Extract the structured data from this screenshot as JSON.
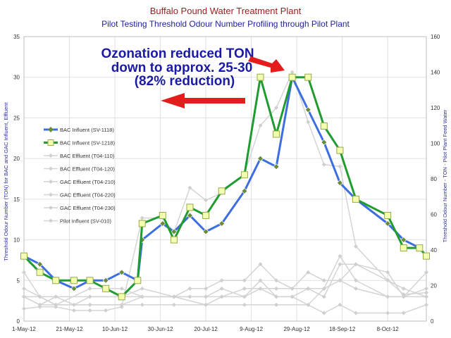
{
  "chart_data": {
    "type": "line",
    "title": "Buffalo Pound Water Treatment Plant",
    "subtitle": "Pilot Testing Threshold Odour Number Profiling through Pilot Plant",
    "ylabel": "Threshold Odour Number (TON) for BAC and GAC Influent, Effluent",
    "y2label": "Threshold Odour Number - TON - Pilot Plant Feed Water",
    "ylim": [
      0,
      35
    ],
    "y2lim": [
      0,
      160
    ],
    "y_ticks": [
      "0",
      "5",
      "10",
      "15",
      "20",
      "25",
      "30",
      "35"
    ],
    "y2_ticks": [
      "0",
      "20",
      "40",
      "60",
      "80",
      "100",
      "120",
      "140",
      "160"
    ],
    "x_ticks": [
      "1-May-12",
      "21-May-12",
      "10-Jun-12",
      "30-Jun-12",
      "20-Jul-12",
      "9-Aug-12",
      "29-Aug-12",
      "18-Sep-12",
      "8-Oct-12"
    ],
    "x_start": "2012-05-01",
    "x_end": "2012-10-25",
    "grid": true,
    "legend_position": "left",
    "annotation": {
      "lines": [
        "Ozonation reduced TON",
        "down to approx. 25-30",
        "(82% reduction)"
      ],
      "color": "#1a1aa6",
      "arrow_color": "#e41c1c"
    },
    "colors": {
      "title": "#9b1c1c",
      "subtitle": "#1f1f9e",
      "axis_label": "#2f2f9a",
      "bac_influent_1118": "#3d6ee0",
      "bac_influent_1218": "#1f9c2f",
      "bac_influent_1218_marker": "#f2ffb0",
      "grey_series": "#d4d4d4",
      "grid": "#e0e0e0"
    },
    "series": [
      {
        "name": "BAC Influent (SV-1118)",
        "axis": "left",
        "style": "blue",
        "points": [
          [
            "2012-05-01",
            8
          ],
          [
            "2012-05-08",
            7
          ],
          [
            "2012-05-15",
            5
          ],
          [
            "2012-05-23",
            4
          ],
          [
            "2012-05-30",
            5
          ],
          [
            "2012-06-06",
            5
          ],
          [
            "2012-06-13",
            6
          ],
          [
            "2012-06-20",
            5
          ],
          [
            "2012-06-22",
            10
          ],
          [
            "2012-07-01",
            12
          ],
          [
            "2012-07-06",
            11
          ],
          [
            "2012-07-13",
            13
          ],
          [
            "2012-07-20",
            11
          ],
          [
            "2012-07-27",
            12
          ],
          [
            "2012-08-06",
            16
          ],
          [
            "2012-08-13",
            20
          ],
          [
            "2012-08-20",
            19
          ],
          [
            "2012-08-27",
            30
          ],
          [
            "2012-09-03",
            26
          ],
          [
            "2012-09-10",
            22
          ],
          [
            "2012-09-17",
            17
          ],
          [
            "2012-09-24",
            15
          ],
          [
            "2012-10-08",
            12
          ],
          [
            "2012-10-15",
            10
          ],
          [
            "2012-10-22",
            9
          ],
          [
            "2012-10-25",
            8
          ]
        ]
      },
      {
        "name": "BAC Influent (SV-1218)",
        "axis": "left",
        "style": "green",
        "points": [
          [
            "2012-05-01",
            8
          ],
          [
            "2012-05-08",
            6
          ],
          [
            "2012-05-15",
            5
          ],
          [
            "2012-05-23",
            5
          ],
          [
            "2012-05-30",
            5
          ],
          [
            "2012-06-06",
            4
          ],
          [
            "2012-06-13",
            3
          ],
          [
            "2012-06-20",
            5
          ],
          [
            "2012-06-22",
            12
          ],
          [
            "2012-07-01",
            13
          ],
          [
            "2012-07-06",
            10
          ],
          [
            "2012-07-13",
            14
          ],
          [
            "2012-07-20",
            13
          ],
          [
            "2012-07-27",
            16
          ],
          [
            "2012-08-06",
            18
          ],
          [
            "2012-08-13",
            30
          ],
          [
            "2012-08-20",
            23
          ],
          [
            "2012-08-27",
            30
          ],
          [
            "2012-09-03",
            30
          ],
          [
            "2012-09-10",
            24
          ],
          [
            "2012-09-17",
            21
          ],
          [
            "2012-09-24",
            15
          ],
          [
            "2012-10-08",
            13
          ],
          [
            "2012-10-15",
            9
          ],
          [
            "2012-10-22",
            9
          ],
          [
            "2012-10-25",
            8
          ]
        ]
      },
      {
        "name": "BAC Effluent (T04-110)",
        "axis": "left",
        "style": "grey",
        "points": [
          [
            "2012-05-01",
            6
          ],
          [
            "2012-05-08",
            3
          ],
          [
            "2012-05-15",
            2
          ],
          [
            "2012-05-30",
            4
          ],
          [
            "2012-06-13",
            4
          ],
          [
            "2012-06-22",
            3
          ],
          [
            "2012-07-06",
            3
          ],
          [
            "2012-07-20",
            3
          ],
          [
            "2012-07-27",
            4
          ],
          [
            "2012-08-06",
            3
          ],
          [
            "2012-08-13",
            5
          ],
          [
            "2012-08-20",
            3
          ],
          [
            "2012-08-27",
            3
          ],
          [
            "2012-09-03",
            2
          ],
          [
            "2012-09-10",
            4
          ],
          [
            "2012-09-17",
            8
          ],
          [
            "2012-09-24",
            5
          ],
          [
            "2012-10-08",
            3
          ],
          [
            "2012-10-15",
            3
          ],
          [
            "2012-10-25",
            6
          ]
        ]
      },
      {
        "name": "BAC Effluent (T04-120)",
        "axis": "left",
        "style": "grey",
        "points": [
          [
            "2012-05-01",
            4
          ],
          [
            "2012-05-08",
            3
          ],
          [
            "2012-05-15",
            3
          ],
          [
            "2012-05-30",
            3
          ],
          [
            "2012-06-13",
            3
          ],
          [
            "2012-06-22",
            4
          ],
          [
            "2012-07-06",
            3
          ],
          [
            "2012-07-13",
            4
          ],
          [
            "2012-07-20",
            4
          ],
          [
            "2012-07-27",
            5
          ],
          [
            "2012-08-06",
            5
          ],
          [
            "2012-08-13",
            7
          ],
          [
            "2012-08-20",
            5
          ],
          [
            "2012-08-27",
            4
          ],
          [
            "2012-09-03",
            6
          ],
          [
            "2012-09-10",
            5
          ],
          [
            "2012-09-17",
            5
          ],
          [
            "2012-09-24",
            7
          ],
          [
            "2012-10-08",
            6
          ],
          [
            "2012-10-15",
            3
          ],
          [
            "2012-10-25",
            4
          ]
        ]
      },
      {
        "name": "GAC Effluent (T04-210)",
        "axis": "left",
        "style": "grey",
        "points": [
          [
            "2012-05-01",
            3
          ],
          [
            "2012-05-08",
            2
          ],
          [
            "2012-05-15",
            2
          ],
          [
            "2012-05-30",
            2
          ],
          [
            "2012-06-13",
            2
          ],
          [
            "2012-06-22",
            2
          ],
          [
            "2012-07-06",
            2
          ],
          [
            "2012-07-20",
            2
          ],
          [
            "2012-08-06",
            2
          ],
          [
            "2012-08-20",
            2
          ],
          [
            "2012-09-03",
            2
          ],
          [
            "2012-09-10",
            1
          ],
          [
            "2012-09-17",
            2
          ],
          [
            "2012-09-24",
            1
          ],
          [
            "2012-10-08",
            1
          ],
          [
            "2012-10-15",
            1
          ],
          [
            "2012-10-25",
            2
          ]
        ]
      },
      {
        "name": "GAC Effluent (T04-220)",
        "axis": "left",
        "style": "grey",
        "points": [
          [
            "2012-05-01",
            3
          ],
          [
            "2012-05-08",
            2
          ],
          [
            "2012-05-15",
            3
          ],
          [
            "2012-05-23",
            2
          ],
          [
            "2012-05-30",
            2
          ],
          [
            "2012-06-13",
            2
          ],
          [
            "2012-06-22",
            3
          ],
          [
            "2012-07-06",
            3
          ],
          [
            "2012-07-13",
            3
          ],
          [
            "2012-07-20",
            3
          ],
          [
            "2012-07-27",
            3
          ],
          [
            "2012-08-06",
            4
          ],
          [
            "2012-08-13",
            4
          ],
          [
            "2012-08-20",
            4
          ],
          [
            "2012-08-27",
            4
          ],
          [
            "2012-09-03",
            4
          ],
          [
            "2012-09-10",
            4
          ],
          [
            "2012-09-17",
            5
          ],
          [
            "2012-09-24",
            4
          ],
          [
            "2012-10-08",
            3
          ],
          [
            "2012-10-15",
            3
          ],
          [
            "2012-10-25",
            3
          ]
        ]
      },
      {
        "name": "GAC Effluent (T04-230)",
        "axis": "left",
        "style": "grey",
        "points": [
          [
            "2012-05-01",
            3
          ],
          [
            "2012-05-08",
            3
          ],
          [
            "2012-05-15",
            2
          ],
          [
            "2012-05-23",
            2
          ],
          [
            "2012-05-30",
            3
          ],
          [
            "2012-06-13",
            3
          ],
          [
            "2012-06-22",
            3
          ],
          [
            "2012-07-06",
            3
          ],
          [
            "2012-07-20",
            2
          ],
          [
            "2012-07-27",
            3
          ],
          [
            "2012-08-06",
            3
          ],
          [
            "2012-08-13",
            4
          ],
          [
            "2012-08-20",
            3
          ],
          [
            "2012-08-27",
            3
          ],
          [
            "2012-09-03",
            4
          ],
          [
            "2012-09-10",
            3
          ],
          [
            "2012-09-17",
            7
          ],
          [
            "2012-09-24",
            7
          ],
          [
            "2012-10-08",
            5
          ],
          [
            "2012-10-15",
            4
          ],
          [
            "2012-10-25",
            3
          ]
        ]
      },
      {
        "name": "Pilot Influent (SV-010)",
        "axis": "right",
        "style": "grey",
        "points": [
          [
            "2012-05-01",
            7
          ],
          [
            "2012-05-08",
            8
          ],
          [
            "2012-05-15",
            8
          ],
          [
            "2012-05-23",
            6
          ],
          [
            "2012-05-30",
            6
          ],
          [
            "2012-06-06",
            6
          ],
          [
            "2012-06-13",
            8
          ],
          [
            "2012-06-22",
            58
          ],
          [
            "2012-07-01",
            58
          ],
          [
            "2012-07-06",
            50
          ],
          [
            "2012-07-13",
            75
          ],
          [
            "2012-07-20",
            68
          ],
          [
            "2012-07-27",
            72
          ],
          [
            "2012-08-06",
            83
          ],
          [
            "2012-08-13",
            110
          ],
          [
            "2012-08-20",
            120
          ],
          [
            "2012-08-27",
            140
          ],
          [
            "2012-09-03",
            112
          ],
          [
            "2012-09-10",
            88
          ],
          [
            "2012-09-17",
            87
          ],
          [
            "2012-09-24",
            42
          ],
          [
            "2012-10-08",
            23
          ],
          [
            "2012-10-15",
            15
          ],
          [
            "2012-10-25",
            16
          ]
        ]
      }
    ]
  }
}
